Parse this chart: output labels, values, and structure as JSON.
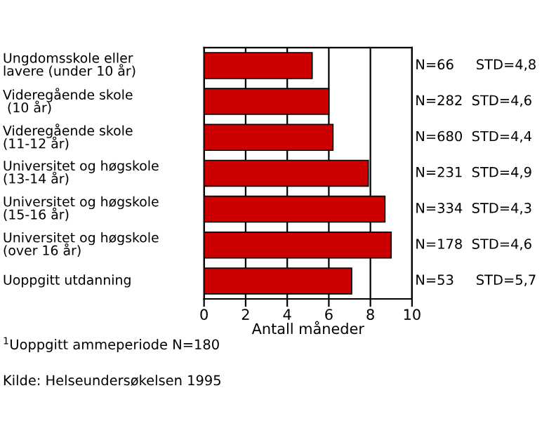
{
  "chart_data": {
    "type": "bar",
    "orientation": "horizontal",
    "xlabel": "Antall måneder",
    "categories": [
      "Ungdomsskole eller\nlavere (under 10 år)",
      "Videregående skole\n (10 år)",
      "Videregående skole\n(11-12 år)",
      "Universitet og høgskole\n(13-14 år)",
      "Universitet og høgskole\n(15-16 år)",
      "Universitet og høgskole\n(over 16 år)",
      "Uoppgitt utdanning"
    ],
    "values": [
      5.2,
      6.0,
      6.2,
      7.9,
      8.7,
      9.0,
      7.1
    ],
    "color": "#cc0000",
    "xlim": [
      0,
      10
    ],
    "xticks": [
      0,
      2,
      4,
      6,
      8,
      10
    ],
    "grid": "x",
    "annotations": [
      "N=66     STD=4,8",
      "N=282  STD=4,6",
      "N=680  STD=4,4",
      "N=231  STD=4,9",
      "N=334  STD=4,3",
      "N=178  STD=4,6",
      "N=53     STD=5,7",
      "$^{1}$Uoppgitt ammeperiode N=180",
      "Kilde: Helseundersøkelsen 1995"
    ]
  }
}
